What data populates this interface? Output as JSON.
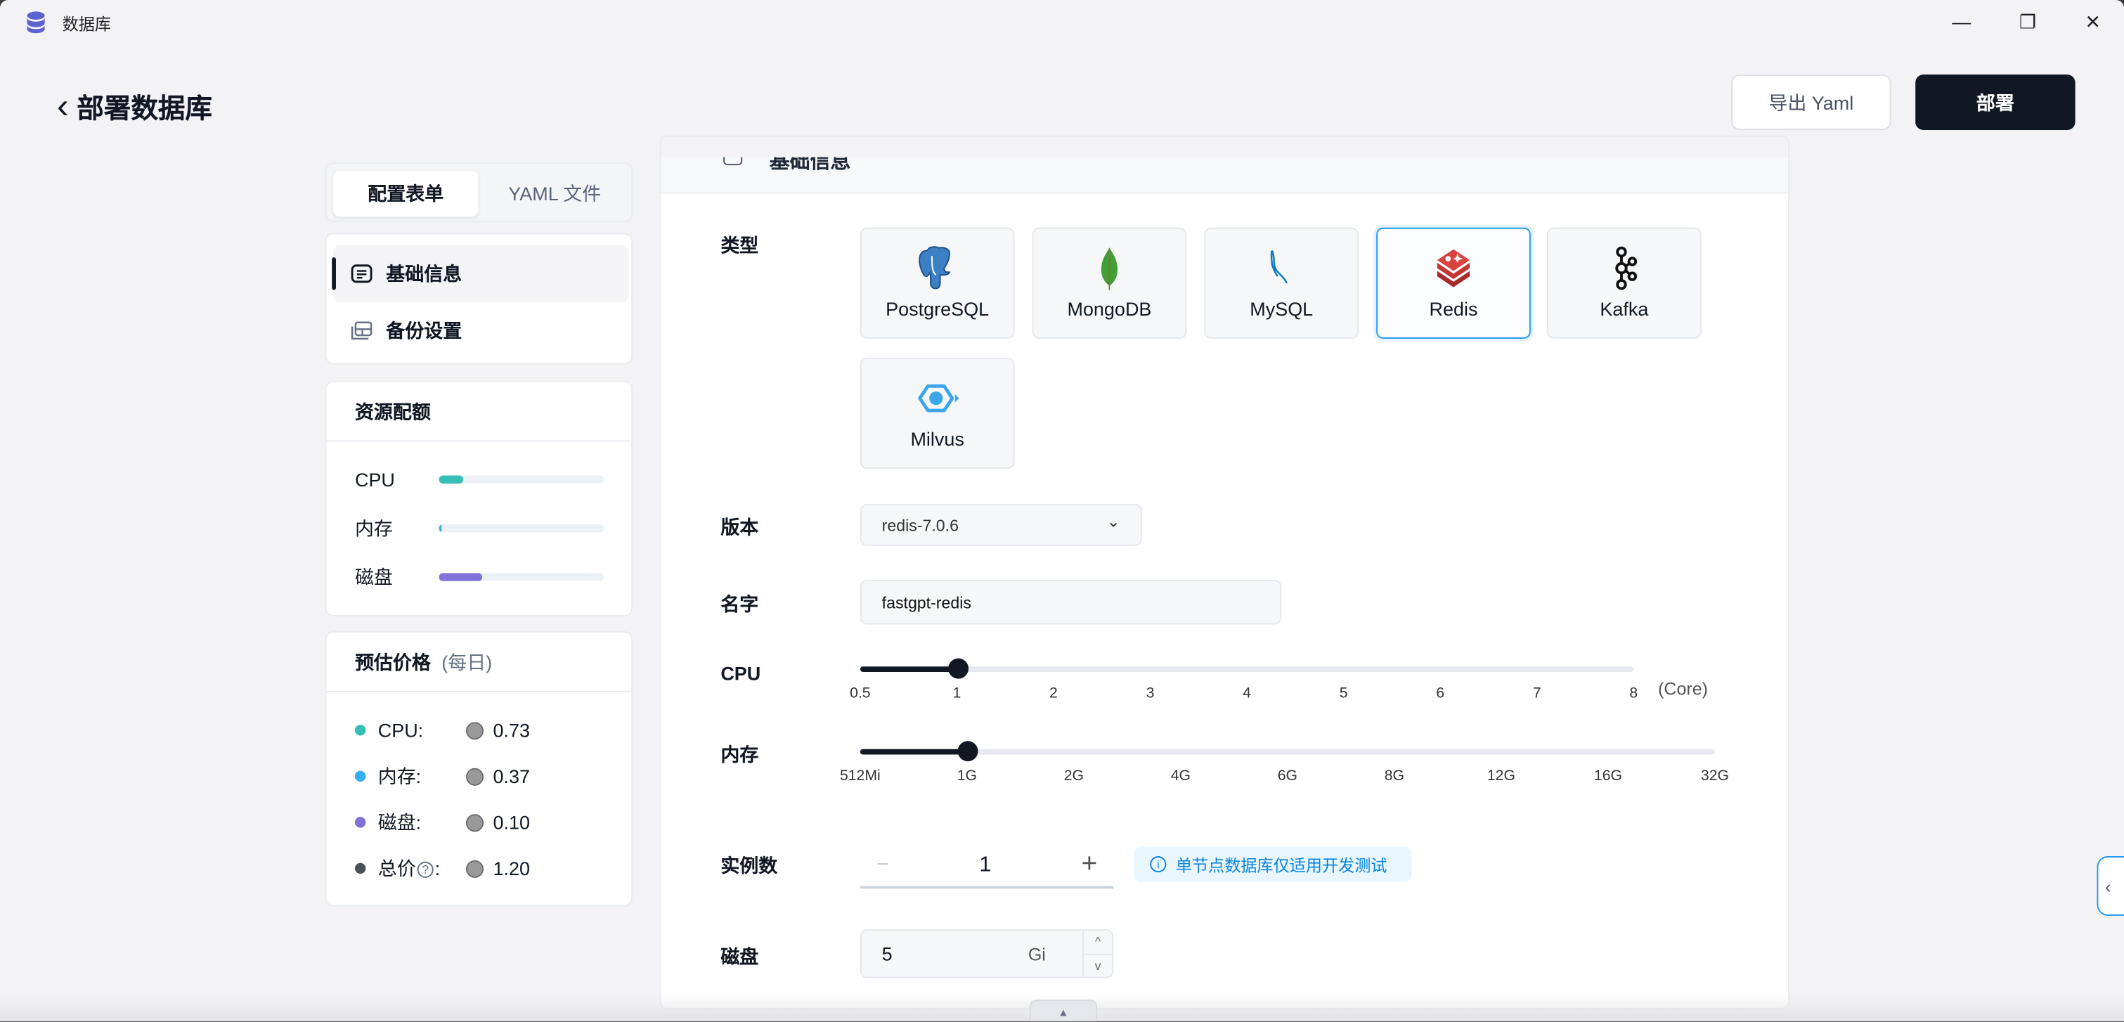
{
  "window": {
    "title": "数据库",
    "minimize": "—",
    "maximize": "❐",
    "close": "✕"
  },
  "header": {
    "back_icon": "‹",
    "title": "部署数据库",
    "export_button": "导出 Yaml",
    "deploy_button": "部署"
  },
  "left": {
    "tabs": [
      {
        "label": "配置表单",
        "active": true
      },
      {
        "label": "YAML 文件",
        "active": false
      }
    ],
    "nav": [
      {
        "label": "基础信息",
        "active": true,
        "icon": "document-list-icon"
      },
      {
        "label": "备份设置",
        "icon": "backup-icon"
      }
    ],
    "resource": {
      "title": "资源配额",
      "rows": [
        {
          "label": "CPU",
          "percent": 15,
          "color": "#36bfb6"
        },
        {
          "label": "内存",
          "percent": 1.5,
          "color": "#36adef"
        },
        {
          "label": "磁盘",
          "percent": 26,
          "color": "#8172d8"
        }
      ]
    },
    "price": {
      "title": "预估价格",
      "subtitle": "(每日)",
      "rows": [
        {
          "label": "CPU:",
          "value": "0.73",
          "color": "#36bfb6"
        },
        {
          "label": "内存:",
          "value": "0.37",
          "color": "#36adef"
        },
        {
          "label": "磁盘:",
          "value": "0.10",
          "color": "#8172d8"
        },
        {
          "label": "总价",
          "help": "?",
          "colon": ":",
          "value": "1.20",
          "color": "#485058"
        }
      ]
    }
  },
  "main": {
    "section_title": "基础信息",
    "type": {
      "label": "类型",
      "options": [
        "PostgreSQL",
        "MongoDB",
        "MySQL",
        "Redis",
        "Kafka",
        "Milvus"
      ],
      "selected": "Redis"
    },
    "version": {
      "label": "版本",
      "value": "redis-7.0.6",
      "chevron": "⌄"
    },
    "name": {
      "label": "名字",
      "value": "fastgpt-redis"
    },
    "cpu": {
      "label": "CPU",
      "ticks": [
        "0.5",
        "1",
        "2",
        "3",
        "4",
        "5",
        "6",
        "7",
        "8"
      ],
      "unit": "(Core)",
      "value": "1"
    },
    "memory": {
      "label": "内存",
      "ticks": [
        "512Mi",
        "1G",
        "2G",
        "4G",
        "6G",
        "8G",
        "12G",
        "16G",
        "32G"
      ],
      "value": "1G"
    },
    "replicas": {
      "label": "实例数",
      "value": "1",
      "minus": "−",
      "plus": "+",
      "info": "单节点数据库仅适用开发测试"
    },
    "disk": {
      "label": "磁盘",
      "value": "5",
      "unit": "Gi",
      "up": "^",
      "down": "v"
    }
  },
  "colors": {
    "accent": "#219bf4",
    "primary": "#111824",
    "info_bg": "#e9f6fe"
  }
}
